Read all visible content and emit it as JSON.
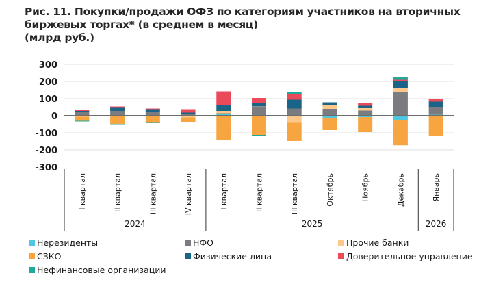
{
  "title": {
    "line1": "Рис. 11. Покупки/продажи ОФЗ по категориям участников на вторичных",
    "line2": "биржевых торгах* (в среднем в месяц)",
    "line3": "(млрд руб.)"
  },
  "chart_data": {
    "type": "bar",
    "stacked": true,
    "title": "Рис. 11. Покупки/продажи ОФЗ по категориям участников на вторичных биржевых торгах* (в среднем в месяц)",
    "subtitle": "(млрд руб.)",
    "xlabel": "",
    "ylabel": "",
    "ylim": [
      -300,
      300
    ],
    "yticks": [
      300,
      200,
      100,
      0,
      -100,
      -200,
      -300
    ],
    "ytick_labels": [
      "300",
      "200",
      "100",
      "0",
      "-100",
      "-200",
      "-300"
    ],
    "grid": true,
    "legend_position": "bottom",
    "categories": [
      "I квартал",
      "II квартал",
      "III квартал",
      "IV квартал",
      "I квартал",
      "II квартал",
      "III квартал",
      "Октябрь",
      "Ноябрь",
      "Декабрь",
      "Январь"
    ],
    "year_groups": [
      {
        "label": "2024",
        "count": 4
      },
      {
        "label": "2025",
        "count": 6
      },
      {
        "label": "2026",
        "count": 1
      }
    ],
    "series": [
      {
        "name": "Нерезиденты",
        "color": "#4ec8e0",
        "values": [
          -2,
          0,
          0,
          0,
          8,
          0,
          0,
          -12,
          -8,
          -25,
          6
        ]
      },
      {
        "name": "НФО",
        "color": "#7b7c80",
        "values": [
          22,
          28,
          24,
          8,
          6,
          50,
          42,
          40,
          30,
          140,
          44
        ]
      },
      {
        "name": "Прочие банки",
        "color": "#fdc88a",
        "values": [
          -4,
          0,
          0,
          -10,
          14,
          4,
          -38,
          20,
          14,
          20,
          2
        ]
      },
      {
        "name": "СЗКО",
        "color": "#f7a540",
        "values": [
          -24,
          -48,
          -38,
          -26,
          -142,
          -112,
          -110,
          -72,
          -88,
          -148,
          -120
        ]
      },
      {
        "name": "Физические лица",
        "color": "#1a6488",
        "values": [
          6,
          18,
          14,
          10,
          32,
          22,
          52,
          18,
          14,
          42,
          30
        ]
      },
      {
        "name": "Доверительное управление",
        "color": "#ea4a5a",
        "values": [
          6,
          8,
          4,
          20,
          82,
          28,
          32,
          0,
          14,
          8,
          16
        ]
      },
      {
        "name": "Нефинансовые организации",
        "color": "#1fa99b",
        "values": [
          -4,
          -2,
          -2,
          0,
          0,
          -4,
          10,
          0,
          0,
          14,
          0
        ]
      }
    ]
  }
}
